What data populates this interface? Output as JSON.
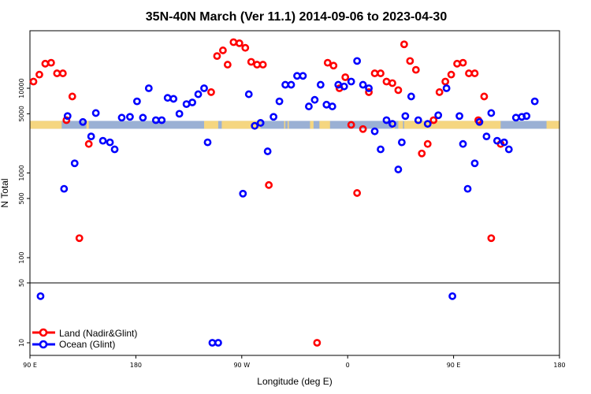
{
  "chart_data": {
    "type": "scatter",
    "title": "35N-40N March (Ver 11.1)   2014-09-06 to 2023-04-30",
    "xlabel": "Longitude (deg E)",
    "ylabel": "N Total",
    "x_tick_labels": [
      "90 E",
      "180",
      "90 W",
      "0",
      "90 E",
      "180"
    ],
    "y_tick_labels_upper": [
      "100",
      "500",
      "1000",
      "5000",
      "10000"
    ],
    "y_tick_labels_lower": [
      "10",
      "50"
    ],
    "xlim": [
      90,
      540
    ],
    "y_scale": "log",
    "legend_position": "bottom-left",
    "series": [
      {
        "name": "Land (Nadir&Glint)",
        "color": "#ff0000",
        "points": [
          [
            93,
            12000
          ],
          [
            98,
            14500
          ],
          [
            103,
            19500
          ],
          [
            108,
            20000
          ],
          [
            113,
            15000
          ],
          [
            118,
            15000
          ],
          [
            121,
            4200
          ],
          [
            126,
            8000
          ],
          [
            132,
            170
          ],
          [
            140,
            2200
          ],
          [
            244,
            9000
          ],
          [
            249,
            24000
          ],
          [
            254,
            28000
          ],
          [
            258,
            19000
          ],
          [
            263,
            35000
          ],
          [
            268,
            34000
          ],
          [
            273,
            30000
          ],
          [
            278,
            20500
          ],
          [
            283,
            19000
          ],
          [
            288,
            19000
          ],
          [
            293,
            720
          ],
          [
            343,
            20000
          ],
          [
            348,
            18500
          ],
          [
            353,
            10000
          ],
          [
            358,
            13500
          ],
          [
            363,
            3700
          ],
          [
            368,
            580
          ],
          [
            373,
            3300
          ],
          [
            378,
            9000
          ],
          [
            383,
            15000
          ],
          [
            388,
            15000
          ],
          [
            393,
            12000
          ],
          [
            398,
            11500
          ],
          [
            403,
            9500
          ],
          [
            408,
            33000
          ],
          [
            413,
            21000
          ],
          [
            418,
            16500
          ],
          [
            423,
            1700
          ],
          [
            428,
            2200
          ],
          [
            433,
            4200
          ],
          [
            438,
            9000
          ],
          [
            443,
            12000
          ],
          [
            448,
            14500
          ],
          [
            453,
            19500
          ],
          [
            458,
            20000
          ],
          [
            463,
            15000
          ],
          [
            468,
            15000
          ],
          [
            471,
            4200
          ],
          [
            476,
            8000
          ],
          [
            482,
            170
          ],
          [
            490,
            2200
          ]
        ]
      },
      {
        "name": "Ocean (Glint)",
        "color": "#0000ff",
        "points": [
          [
            99,
            35
          ],
          [
            119,
            650
          ],
          [
            122,
            4700
          ],
          [
            128,
            1300
          ],
          [
            135,
            4000
          ],
          [
            142,
            2700
          ],
          [
            146,
            5100
          ],
          [
            152,
            2400
          ],
          [
            158,
            2300
          ],
          [
            162,
            1900
          ],
          [
            168,
            4500
          ],
          [
            175,
            4600
          ],
          [
            181,
            7000
          ],
          [
            186,
            4500
          ],
          [
            191,
            10000
          ],
          [
            197,
            4200
          ],
          [
            202,
            4200
          ],
          [
            207,
            7700
          ],
          [
            212,
            7500
          ],
          [
            217,
            5000
          ],
          [
            223,
            6500
          ],
          [
            228,
            6800
          ],
          [
            233,
            8500
          ],
          [
            238,
            10000
          ],
          [
            241,
            2300
          ],
          [
            245,
            10
          ],
          [
            250,
            10
          ],
          [
            271,
            570
          ],
          [
            276,
            8500
          ],
          [
            281,
            3600
          ],
          [
            286,
            3900
          ],
          [
            292,
            1800
          ],
          [
            297,
            4600
          ],
          [
            302,
            7000
          ],
          [
            307,
            11000
          ],
          [
            312,
            11000
          ],
          [
            317,
            14000
          ],
          [
            322,
            14000
          ],
          [
            327,
            6100
          ],
          [
            332,
            7300
          ],
          [
            337,
            11000
          ],
          [
            342,
            6400
          ],
          [
            347,
            6100
          ],
          [
            352,
            11000
          ],
          [
            357,
            10500
          ],
          [
            363,
            12000
          ],
          [
            368,
            21000
          ],
          [
            373,
            11000
          ],
          [
            378,
            10000
          ],
          [
            383,
            3100
          ],
          [
            388,
            1900
          ],
          [
            393,
            4200
          ],
          [
            398,
            3800
          ],
          [
            403,
            1100
          ],
          [
            406,
            2300
          ],
          [
            409,
            4700
          ],
          [
            414,
            8000
          ],
          [
            420,
            4200
          ],
          [
            428,
            3800
          ],
          [
            437,
            4800
          ],
          [
            444,
            10000
          ],
          [
            449,
            35
          ],
          [
            455,
            4700
          ],
          [
            458,
            2200
          ],
          [
            462,
            650
          ],
          [
            468,
            1300
          ],
          [
            472,
            4000
          ],
          [
            478,
            2700
          ],
          [
            482,
            5100
          ],
          [
            487,
            2400
          ],
          [
            493,
            2300
          ],
          [
            497,
            1900
          ],
          [
            503,
            4500
          ],
          [
            508,
            4600
          ],
          [
            512,
            4700
          ],
          [
            519,
            7000
          ]
        ]
      }
    ],
    "extra_land_points": [
      [
        334,
        10
      ]
    ],
    "land_mask_band": {
      "center_value": 3700,
      "ocean_color": "#9ab0d4",
      "land_color": "#f5d680",
      "land_ranges": [
        [
          90,
          117
        ],
        [
          138,
          140
        ],
        [
          238,
          250
        ],
        [
          253,
          286
        ],
        [
          306,
          307
        ],
        [
          309,
          310
        ],
        [
          328,
          331
        ],
        [
          336,
          345
        ],
        [
          398,
          400
        ],
        [
          403,
          407
        ],
        [
          408,
          490
        ],
        [
          529,
          540
        ]
      ]
    }
  }
}
